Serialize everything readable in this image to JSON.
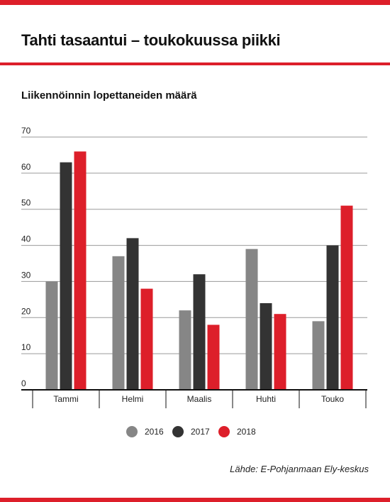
{
  "header": {
    "title": "Tahti tasaantui – toukokuussa piikki"
  },
  "source": "Lähde: E-Pohjanmaan Ely-keskus",
  "colors": {
    "accent": "#dd1f2a",
    "series_2016": "#868686",
    "series_2017": "#333333",
    "series_2018": "#dd1f2a"
  },
  "chart_data": {
    "type": "bar",
    "title": "Liikennöinnin lopettaneiden määrä",
    "categories": [
      "Tammi",
      "Helmi",
      "Maalis",
      "Huhti",
      "Touko"
    ],
    "series": [
      {
        "name": "2016",
        "color": "#868686",
        "values": [
          30,
          37,
          22,
          39,
          19
        ]
      },
      {
        "name": "2017",
        "color": "#333333",
        "values": [
          63,
          42,
          32,
          24,
          40
        ]
      },
      {
        "name": "2018",
        "color": "#dd1f2a",
        "values": [
          66,
          28,
          18,
          21,
          51
        ]
      }
    ],
    "yticks": [
      0,
      10,
      20,
      30,
      40,
      50,
      60,
      70
    ],
    "ylim": [
      0,
      70
    ],
    "xlabel": "",
    "ylabel": "",
    "grid": true,
    "legend": "bottom-center"
  }
}
